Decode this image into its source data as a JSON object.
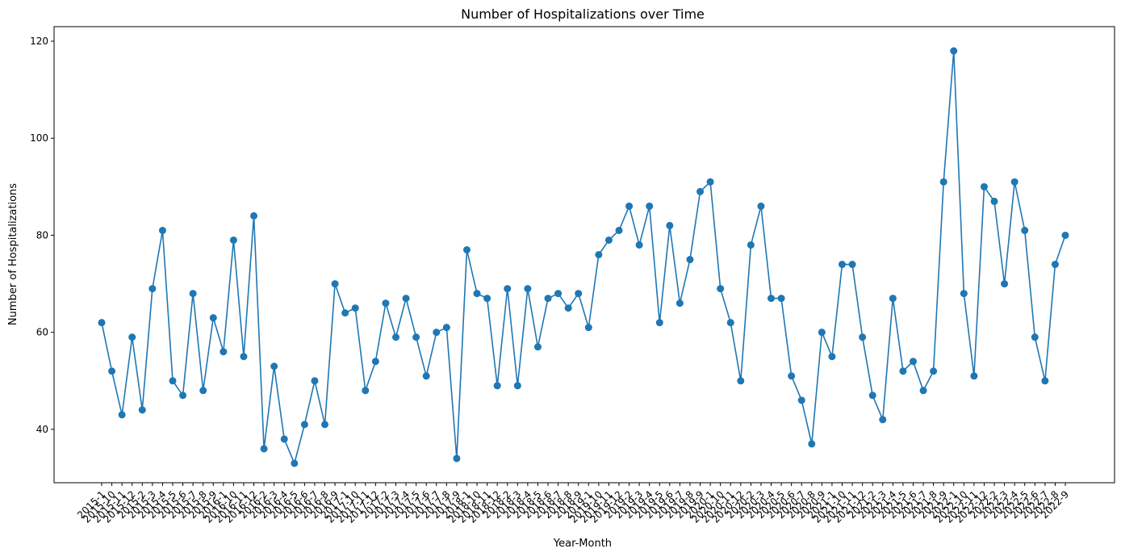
{
  "chart_data": {
    "type": "line",
    "title": "Number of Hospitalizations over Time",
    "xlabel": "Year-Month",
    "ylabel": "Number of Hospitalizations",
    "ylim": [
      29,
      123
    ],
    "yticks": [
      40,
      60,
      80,
      100,
      120
    ],
    "marker": "circle",
    "grid": false,
    "color": "#1f77b4",
    "categories": [
      "2015-1",
      "2015-10",
      "2015-11",
      "2015-12",
      "2015-2",
      "2015-3",
      "2015-4",
      "2015-5",
      "2015-6",
      "2015-7",
      "2015-8",
      "2015-9",
      "2016-1",
      "2016-10",
      "2016-11",
      "2016-12",
      "2016-2",
      "2016-3",
      "2016-4",
      "2016-5",
      "2016-6",
      "2016-7",
      "2016-8",
      "2016-9",
      "2017-1",
      "2017-10",
      "2017-11",
      "2017-12",
      "2017-2",
      "2017-3",
      "2017-4",
      "2017-5",
      "2017-6",
      "2017-7",
      "2017-8",
      "2017-9",
      "2018-1",
      "2018-10",
      "2018-11",
      "2018-12",
      "2018-2",
      "2018-3",
      "2018-4",
      "2018-5",
      "2018-6",
      "2018-7",
      "2018-8",
      "2018-9",
      "2019-1",
      "2019-10",
      "2019-11",
      "2019-12",
      "2019-2",
      "2019-3",
      "2019-4",
      "2019-5",
      "2019-6",
      "2019-7",
      "2019-8",
      "2019-9",
      "2020-1",
      "2020-10",
      "2020-11",
      "2020-12",
      "2020-2",
      "2020-3",
      "2020-4",
      "2020-5",
      "2020-6",
      "2020-7",
      "2020-8",
      "2020-9",
      "2021-1",
      "2021-10",
      "2021-11",
      "2021-12",
      "2021-2",
      "2021-3",
      "2021-4",
      "2021-5",
      "2021-6",
      "2021-7",
      "2021-8",
      "2021-9",
      "2022-1",
      "2022-10",
      "2022-11",
      "2022-12",
      "2022-2",
      "2022-3",
      "2022-4",
      "2022-5",
      "2022-6",
      "2022-7",
      "2022-8",
      "2022-9"
    ],
    "values": [
      62,
      52,
      43,
      59,
      44,
      69,
      81,
      50,
      47,
      68,
      48,
      63,
      56,
      79,
      55,
      84,
      36,
      53,
      38,
      33,
      41,
      50,
      41,
      70,
      64,
      65,
      48,
      54,
      66,
      59,
      67,
      59,
      51,
      60,
      61,
      34,
      77,
      68,
      67,
      49,
      69,
      49,
      69,
      57,
      67,
      68,
      65,
      68,
      61,
      76,
      79,
      81,
      86,
      78,
      86,
      62,
      82,
      66,
      75,
      89,
      91,
      69,
      62,
      50,
      78,
      86,
      67,
      67,
      51,
      46,
      37,
      60,
      55,
      74,
      74,
      59,
      47,
      42,
      67,
      52,
      54,
      48,
      52,
      91,
      118,
      68,
      51,
      90,
      87,
      70,
      91,
      81,
      59,
      50,
      74,
      80
    ]
  }
}
